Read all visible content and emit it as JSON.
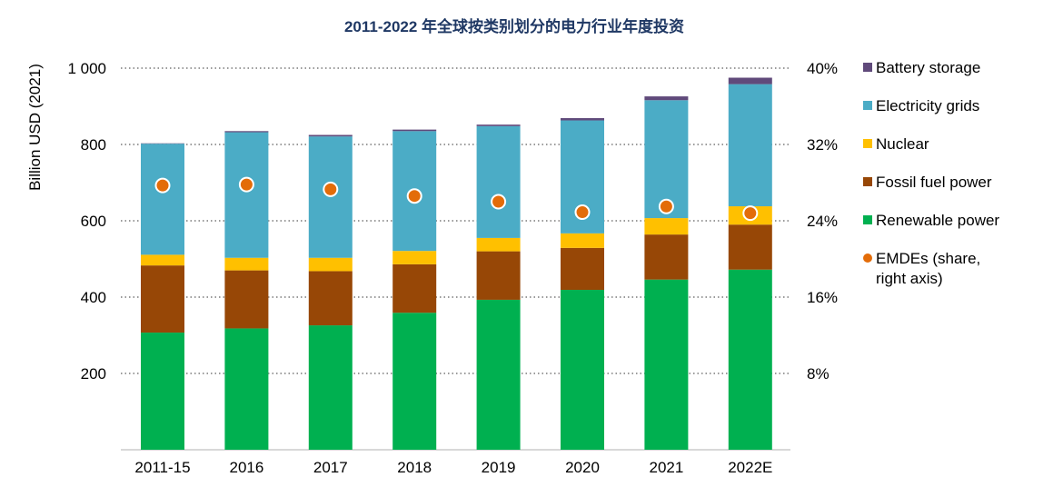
{
  "chart_data": {
    "type": "bar",
    "stacked": true,
    "title": "2011-2022 年全球按类别划分的电力行业年度投资",
    "ylabel": "Billion USD (2021)",
    "ylim": [
      0,
      1000
    ],
    "yticks": [
      200,
      400,
      600,
      800,
      1000
    ],
    "ytick_labels": [
      "200",
      "400",
      "600",
      "800",
      "1 000"
    ],
    "y2lim": [
      0,
      40
    ],
    "y2ticks": [
      8,
      16,
      24,
      32,
      40
    ],
    "y2tick_labels": [
      "8%",
      "16%",
      "24%",
      "32%",
      "40%"
    ],
    "grid": true,
    "legend_position": "right",
    "categories": [
      "2011-15",
      "2016",
      "2017",
      "2018",
      "2019",
      "2020",
      "2021",
      "2022E"
    ],
    "series": [
      {
        "name": "Renewable power",
        "color": "#00b050",
        "values": [
          307,
          318,
          326,
          359,
          393,
          419,
          446,
          472
        ]
      },
      {
        "name": "Fossil fuel power",
        "color": "#974706",
        "values": [
          176,
          152,
          142,
          127,
          127,
          110,
          118,
          118
        ]
      },
      {
        "name": "Nuclear",
        "color": "#ffc000",
        "values": [
          28,
          33,
          35,
          35,
          35,
          38,
          43,
          48
        ]
      },
      {
        "name": "Electricity grids",
        "color": "#4bacc6",
        "values": [
          291,
          329,
          318,
          314,
          293,
          296,
          309,
          320
        ]
      },
      {
        "name": "Battery storage",
        "color": "#604a7b",
        "values": [
          1,
          3,
          4,
          4,
          4,
          6,
          10,
          17
        ]
      }
    ],
    "line_series": {
      "name": "EMDEs (share, right axis)",
      "axis": "right",
      "marker": "circle",
      "color": "#e36c09",
      "values": [
        27.7,
        27.8,
        27.3,
        26.6,
        26.0,
        24.9,
        25.5,
        24.8
      ]
    },
    "legend": [
      {
        "label": "Battery storage",
        "color": "#604a7b",
        "marker": "square"
      },
      {
        "label": "Electricity grids",
        "color": "#4bacc6",
        "marker": "square"
      },
      {
        "label": "Nuclear",
        "color": "#ffc000",
        "marker": "square"
      },
      {
        "label": "Fossil fuel power",
        "color": "#974706",
        "marker": "square"
      },
      {
        "label": "Renewable power",
        "color": "#00b050",
        "marker": "square"
      },
      {
        "label": "EMDEs (share,",
        "label2": "right axis)",
        "color": "#e36c09",
        "marker": "circle"
      }
    ]
  }
}
